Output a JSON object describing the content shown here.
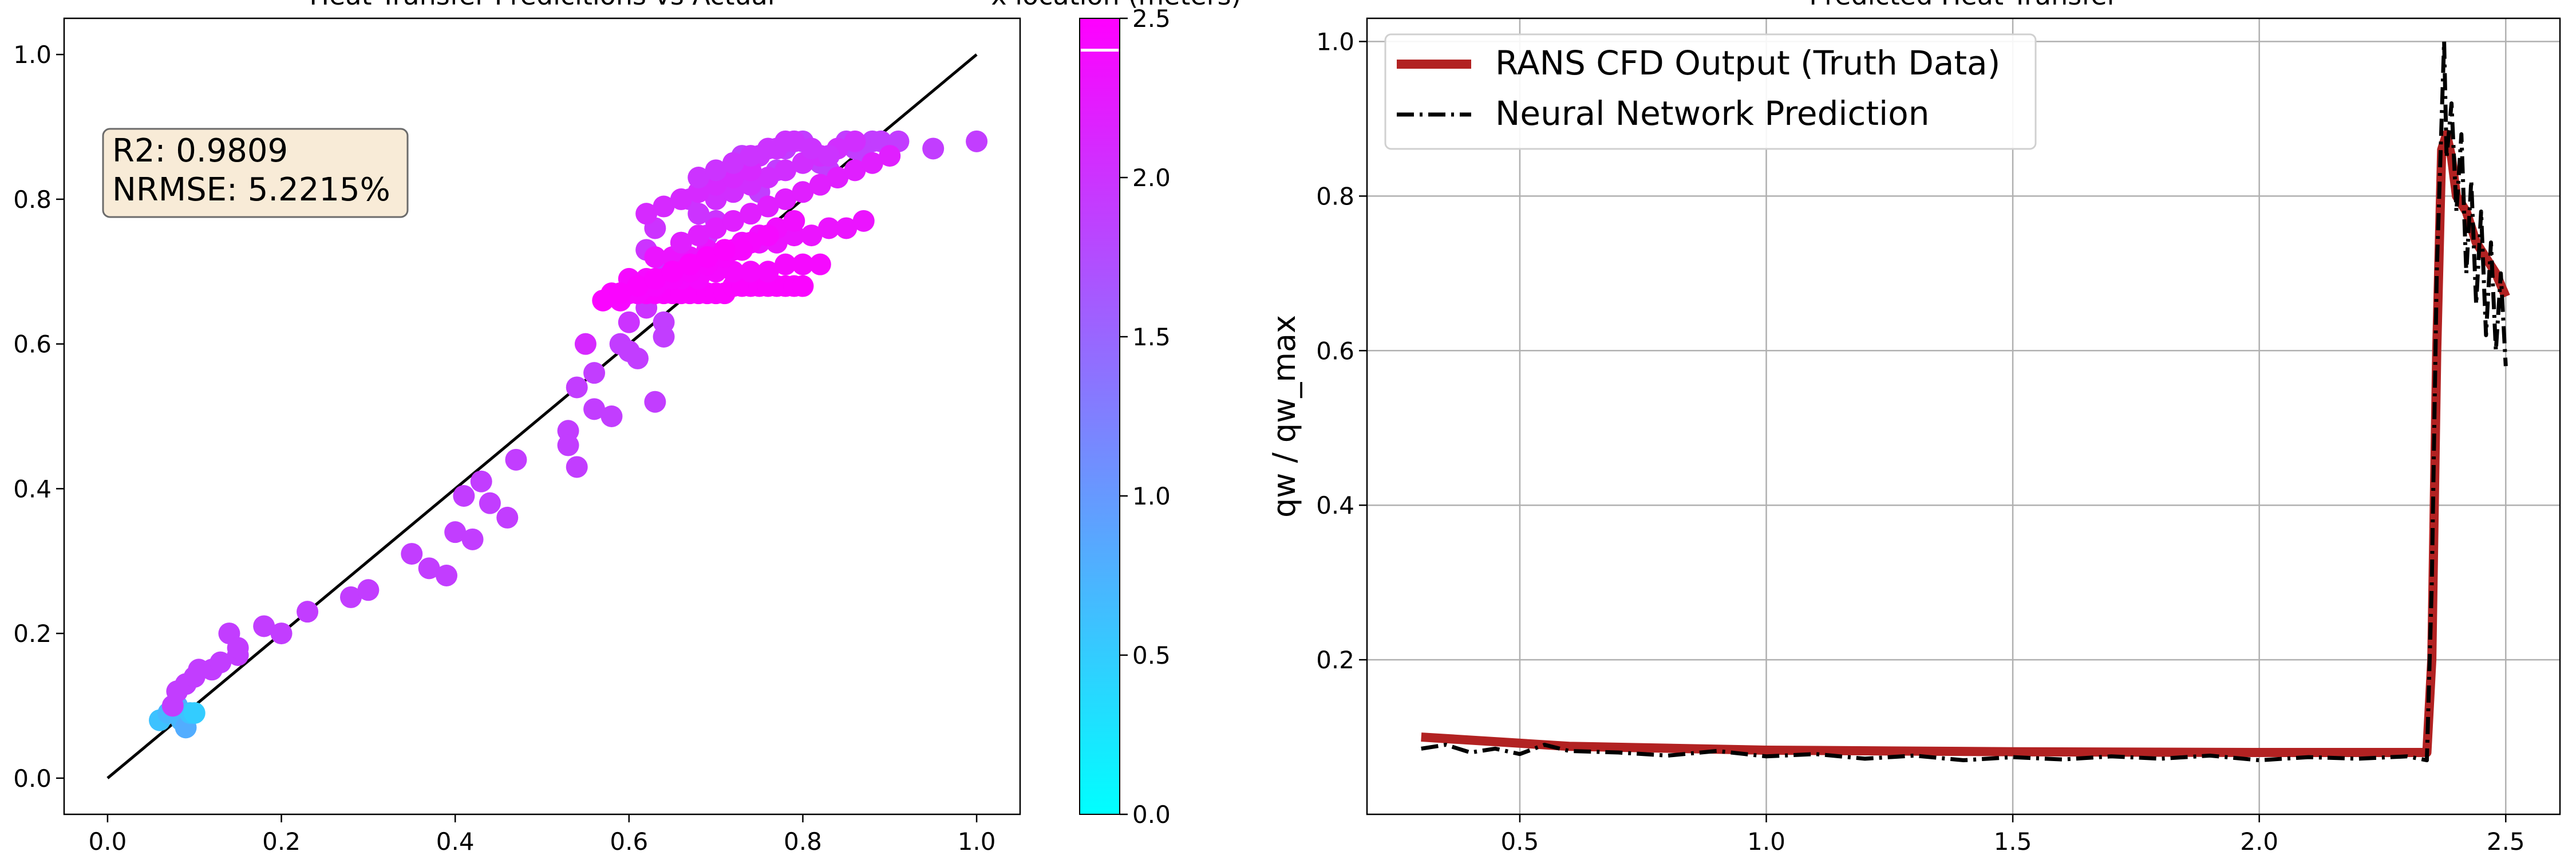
{
  "chart_data": [
    {
      "type": "scatter",
      "title": "Heat Transfer Predicitions vs Actual",
      "xlabel": "",
      "ylabel": "",
      "xlim": [
        -0.05,
        1.05
      ],
      "ylim": [
        -0.05,
        1.05
      ],
      "xticks": [
        "0.0",
        "0.2",
        "0.4",
        "0.6",
        "0.8",
        "1.0"
      ],
      "yticks": [
        "0.0",
        "0.2",
        "0.4",
        "0.6",
        "0.8",
        "1.0"
      ],
      "grid": false,
      "reference_line": {
        "x": [
          0,
          1
        ],
        "y": [
          0,
          1
        ],
        "color": "#000000"
      },
      "annotation": {
        "lines": [
          "R2: 0.9809",
          "NRMSE: 5.2215%"
        ],
        "placement": "top-left"
      },
      "color_by": "x location (meters)",
      "points": {
        "note_series": "x = Actual (qw/qw_max), y = Predicted (qw/qw_max), c = x location (m)",
        "x": [
          0.06,
          0.07,
          0.08,
          0.085,
          0.09,
          0.095,
          0.1,
          0.075,
          0.08,
          0.09,
          0.1,
          0.105,
          0.12,
          0.13,
          0.14,
          0.15,
          0.15,
          0.18,
          0.2,
          0.23,
          0.28,
          0.3,
          0.35,
          0.37,
          0.39,
          0.4,
          0.41,
          0.42,
          0.43,
          0.44,
          0.46,
          0.47,
          0.53,
          0.53,
          0.54,
          0.54,
          0.56,
          0.56,
          0.58,
          0.59,
          0.6,
          0.61,
          0.63,
          0.64,
          0.64,
          0.55,
          0.6,
          0.62,
          0.62,
          0.63,
          0.64,
          0.65,
          0.66,
          0.67,
          0.68,
          0.69,
          0.7,
          0.71,
          0.72,
          0.73,
          0.74,
          0.75,
          0.76,
          0.77,
          0.78,
          0.79,
          0.8,
          0.81,
          0.82,
          0.83,
          0.84,
          0.85,
          0.86,
          0.87,
          0.88,
          0.89,
          0.9,
          0.91,
          0.95,
          1.0,
          0.58,
          0.59,
          0.6,
          0.61,
          0.62,
          0.63,
          0.64,
          0.65,
          0.66,
          0.67,
          0.68,
          0.69,
          0.7,
          0.71,
          0.72,
          0.73,
          0.74,
          0.75,
          0.76,
          0.77,
          0.78,
          0.79,
          0.8,
          0.6,
          0.62,
          0.64,
          0.66,
          0.68,
          0.7,
          0.72,
          0.74,
          0.76,
          0.78,
          0.8,
          0.82,
          0.63,
          0.65,
          0.67,
          0.69,
          0.71,
          0.73,
          0.75,
          0.77,
          0.79,
          0.81,
          0.83,
          0.85,
          0.87,
          0.66,
          0.68,
          0.7,
          0.72,
          0.74,
          0.76,
          0.78,
          0.8,
          0.82,
          0.84,
          0.86,
          0.88,
          0.9,
          0.7,
          0.72,
          0.74,
          0.76,
          0.78,
          0.8,
          0.82,
          0.84,
          0.86,
          0.75,
          0.77,
          0.79,
          0.81,
          0.83,
          0.65,
          0.67,
          0.69,
          0.71,
          0.73,
          0.75,
          0.77,
          0.79,
          0.62,
          0.64,
          0.66,
          0.68,
          0.7,
          0.72,
          0.74,
          0.76,
          0.59,
          0.61,
          0.63,
          0.65,
          0.67,
          0.69,
          0.71,
          0.73,
          0.57,
          0.59,
          0.61,
          0.63,
          0.65,
          0.67,
          0.69,
          0.71,
          0.62,
          0.64,
          0.66,
          0.68,
          0.7,
          0.72,
          0.74,
          0.68,
          0.7,
          0.72,
          0.74,
          0.76,
          0.78
        ],
        "y": [
          0.08,
          0.09,
          0.1,
          0.08,
          0.07,
          0.09,
          0.09,
          0.1,
          0.12,
          0.13,
          0.14,
          0.15,
          0.15,
          0.16,
          0.2,
          0.17,
          0.18,
          0.21,
          0.2,
          0.23,
          0.25,
          0.26,
          0.31,
          0.29,
          0.28,
          0.34,
          0.39,
          0.33,
          0.41,
          0.38,
          0.36,
          0.44,
          0.48,
          0.46,
          0.43,
          0.54,
          0.51,
          0.56,
          0.5,
          0.6,
          0.59,
          0.58,
          0.52,
          0.63,
          0.61,
          0.6,
          0.63,
          0.65,
          0.73,
          0.76,
          0.71,
          0.68,
          0.74,
          0.8,
          0.78,
          0.75,
          0.77,
          0.82,
          0.85,
          0.86,
          0.83,
          0.81,
          0.79,
          0.84,
          0.87,
          0.88,
          0.88,
          0.86,
          0.85,
          0.84,
          0.83,
          0.88,
          0.87,
          0.86,
          0.88,
          0.88,
          0.87,
          0.88,
          0.87,
          0.88,
          0.67,
          0.67,
          0.67,
          0.67,
          0.67,
          0.67,
          0.67,
          0.67,
          0.67,
          0.67,
          0.67,
          0.67,
          0.67,
          0.67,
          0.68,
          0.68,
          0.68,
          0.68,
          0.68,
          0.68,
          0.68,
          0.68,
          0.68,
          0.69,
          0.69,
          0.69,
          0.69,
          0.69,
          0.7,
          0.7,
          0.7,
          0.7,
          0.71,
          0.71,
          0.71,
          0.72,
          0.72,
          0.72,
          0.73,
          0.73,
          0.73,
          0.74,
          0.74,
          0.75,
          0.75,
          0.76,
          0.76,
          0.77,
          0.74,
          0.75,
          0.76,
          0.77,
          0.78,
          0.79,
          0.8,
          0.81,
          0.82,
          0.83,
          0.84,
          0.85,
          0.86,
          0.8,
          0.81,
          0.82,
          0.83,
          0.84,
          0.85,
          0.86,
          0.87,
          0.88,
          0.86,
          0.87,
          0.88,
          0.87,
          0.86,
          0.7,
          0.71,
          0.72,
          0.73,
          0.74,
          0.75,
          0.76,
          0.77,
          0.68,
          0.69,
          0.7,
          0.71,
          0.72,
          0.73,
          0.74,
          0.75,
          0.66,
          0.67,
          0.68,
          0.69,
          0.7,
          0.71,
          0.72,
          0.73,
          0.66,
          0.67,
          0.68,
          0.69,
          0.7,
          0.71,
          0.72,
          0.73,
          0.78,
          0.79,
          0.8,
          0.81,
          0.82,
          0.83,
          0.84,
          0.83,
          0.84,
          0.85,
          0.86,
          0.87,
          0.88
        ],
        "c": [
          0.6,
          0.7,
          0.8,
          0.7,
          0.8,
          0.6,
          0.5,
          1.9,
          1.9,
          1.9,
          1.9,
          1.9,
          1.9,
          1.9,
          1.9,
          1.9,
          1.9,
          1.9,
          1.9,
          1.9,
          1.9,
          1.9,
          1.9,
          1.9,
          1.9,
          1.9,
          1.9,
          1.9,
          1.9,
          1.9,
          1.9,
          1.9,
          1.9,
          1.9,
          1.9,
          1.9,
          1.9,
          1.9,
          1.9,
          1.9,
          1.9,
          1.9,
          1.9,
          1.9,
          1.9,
          2.1,
          2.0,
          2.0,
          2.0,
          2.0,
          2.0,
          2.0,
          2.0,
          2.0,
          2.0,
          2.0,
          2.0,
          1.9,
          1.9,
          1.9,
          1.9,
          1.9,
          1.9,
          1.9,
          1.9,
          1.9,
          1.9,
          1.9,
          1.9,
          1.9,
          1.9,
          1.9,
          1.9,
          1.9,
          1.9,
          1.9,
          1.9,
          1.9,
          1.9,
          1.9,
          2.45,
          2.45,
          2.45,
          2.45,
          2.45,
          2.45,
          2.45,
          2.45,
          2.45,
          2.45,
          2.45,
          2.45,
          2.45,
          2.45,
          2.45,
          2.45,
          2.45,
          2.45,
          2.45,
          2.45,
          2.45,
          2.45,
          2.45,
          2.4,
          2.4,
          2.4,
          2.4,
          2.4,
          2.4,
          2.4,
          2.4,
          2.4,
          2.4,
          2.4,
          2.4,
          2.3,
          2.3,
          2.3,
          2.3,
          2.3,
          2.3,
          2.3,
          2.3,
          2.3,
          2.3,
          2.3,
          2.3,
          2.3,
          2.2,
          2.2,
          2.2,
          2.2,
          2.2,
          2.2,
          2.2,
          2.2,
          2.2,
          2.2,
          2.2,
          2.2,
          2.2,
          2.05,
          2.05,
          2.05,
          2.05,
          2.05,
          2.05,
          2.05,
          2.05,
          2.05,
          2.0,
          2.0,
          2.0,
          2.0,
          2.0,
          2.35,
          2.35,
          2.35,
          2.35,
          2.35,
          2.35,
          2.35,
          2.35,
          2.4,
          2.4,
          2.4,
          2.4,
          2.4,
          2.4,
          2.4,
          2.4,
          2.42,
          2.42,
          2.42,
          2.42,
          2.42,
          2.42,
          2.42,
          2.42,
          2.45,
          2.45,
          2.45,
          2.45,
          2.45,
          2.45,
          2.45,
          2.45,
          2.1,
          2.1,
          2.1,
          2.1,
          2.1,
          2.1,
          2.1,
          2.0,
          2.0,
          2.0,
          2.0,
          2.0,
          2.0
        ]
      }
    },
    {
      "type": "colorbar",
      "title": "x location (meters)",
      "range": [
        0.0,
        2.5
      ],
      "ticks": [
        "0.0",
        "0.5",
        "1.0",
        "1.5",
        "2.0",
        "2.5"
      ],
      "colormap": {
        "start": "#00ffff",
        "end": "#ff00ff"
      },
      "marker_value": 2.4
    },
    {
      "type": "line",
      "title": "Predicted Heat Transfer",
      "xlabel": "",
      "ylabel": "qw / qw_max",
      "xlim": [
        0.19,
        2.61
      ],
      "ylim": [
        0.0,
        1.03
      ],
      "xticks": [
        "0.5",
        "1.0",
        "1.5",
        "2.0",
        "2.5"
      ],
      "yticks": [
        "0.2",
        "0.4",
        "0.6",
        "0.8",
        "1.0"
      ],
      "grid": true,
      "legend_placement": "upper-left",
      "series": [
        {
          "name": "RANS CFD Output (Truth Data)",
          "color": "#b22222",
          "style": "solid",
          "x": [
            0.3,
            0.6,
            1.0,
            1.5,
            2.0,
            2.34,
            2.35,
            2.36,
            2.37,
            2.38,
            2.39,
            2.4,
            2.42,
            2.44,
            2.46,
            2.48,
            2.5
          ],
          "y": [
            0.1,
            0.088,
            0.083,
            0.081,
            0.08,
            0.08,
            0.2,
            0.6,
            0.86,
            0.88,
            0.85,
            0.8,
            0.78,
            0.74,
            0.72,
            0.7,
            0.67
          ]
        },
        {
          "name": "Neural Network Prediction",
          "color": "#000000",
          "style": "dashdot",
          "x": [
            0.3,
            0.35,
            0.4,
            0.45,
            0.5,
            0.55,
            0.6,
            0.7,
            0.8,
            0.9,
            1.0,
            1.1,
            1.2,
            1.3,
            1.4,
            1.5,
            1.6,
            1.7,
            1.8,
            1.9,
            2.0,
            2.1,
            2.2,
            2.3,
            2.34,
            2.35,
            2.36,
            2.37,
            2.375,
            2.38,
            2.39,
            2.4,
            2.41,
            2.42,
            2.43,
            2.44,
            2.45,
            2.46,
            2.47,
            2.48,
            2.49,
            2.5
          ],
          "y": [
            0.085,
            0.09,
            0.08,
            0.085,
            0.078,
            0.09,
            0.082,
            0.08,
            0.076,
            0.082,
            0.075,
            0.078,
            0.072,
            0.076,
            0.07,
            0.074,
            0.071,
            0.075,
            0.072,
            0.076,
            0.07,
            0.074,
            0.072,
            0.075,
            0.07,
            0.3,
            0.7,
            0.9,
            1.0,
            0.85,
            0.92,
            0.78,
            0.88,
            0.7,
            0.82,
            0.66,
            0.78,
            0.62,
            0.74,
            0.6,
            0.7,
            0.58
          ]
        }
      ]
    }
  ]
}
